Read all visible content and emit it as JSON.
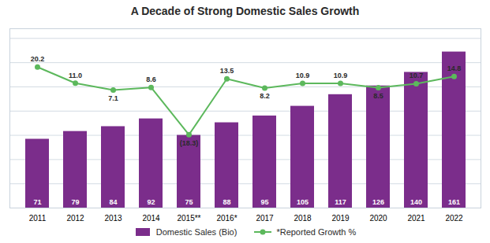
{
  "chart_data": {
    "type": "bar",
    "title": "A Decade of Strong Domestic Sales Growth",
    "categories": [
      "2011",
      "2012",
      "2013",
      "2014",
      "2015**",
      "2016*",
      "2017",
      "2018",
      "2019",
      "2020",
      "2021",
      "2022"
    ],
    "series": [
      {
        "name": "Domestic Sales (Bio)",
        "type": "bar",
        "color": "#7b2d8b",
        "values": [
          71,
          79,
          84,
          92,
          75,
          88,
          95,
          105,
          117,
          126,
          140,
          161
        ]
      },
      {
        "name": "*Reported Growth %",
        "type": "line",
        "axis": "y2",
        "color": "#5cb85c",
        "marker": "circle",
        "values": [
          20.2,
          11.0,
          7.1,
          8.6,
          -18.3,
          13.5,
          8.2,
          10.9,
          10.9,
          8.5,
          10.7,
          14.8
        ],
        "value_labels": [
          "20.2",
          "11.0",
          "7.1",
          "8.6",
          "(18.3)",
          "13.5",
          "8.2",
          "10.9",
          "10.9",
          "8.5",
          "10.7",
          "14.8"
        ]
      }
    ],
    "ylim": [
      0,
      185
    ],
    "yticks": [
      0,
      25,
      50,
      75,
      100,
      125,
      150,
      175
    ],
    "y2lim": [
      -60,
      42
    ],
    "grid": true,
    "legend": "bottom",
    "data_labels": true,
    "tick_labels": "x"
  }
}
